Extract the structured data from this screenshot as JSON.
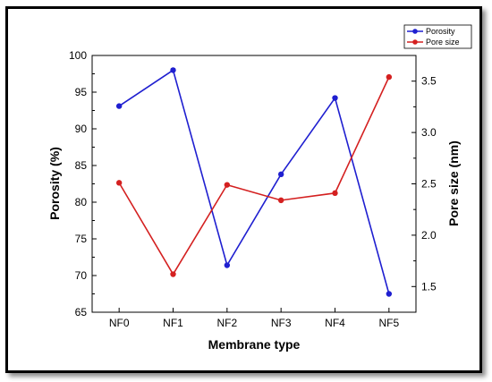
{
  "chart_data": {
    "type": "line",
    "categories": [
      "NF0",
      "NF1",
      "NF2",
      "NF3",
      "NF4",
      "NF5"
    ],
    "xlabel": "Membrane type",
    "ylabel_left": "Porosity (%)",
    "ylabel_right": "Pore size (nm)",
    "ylim_left": [
      65,
      100
    ],
    "ylim_right": [
      1.25,
      3.75
    ],
    "yticks_left": [
      65,
      70,
      75,
      80,
      85,
      90,
      95,
      100
    ],
    "yticks_right": [
      1.5,
      2.0,
      2.5,
      3.0,
      3.5
    ],
    "grid": false,
    "legend_position": "top-right",
    "series": [
      {
        "name": "Porosity",
        "axis": "left",
        "color": "#1f1fd0",
        "values": [
          93.1,
          98.0,
          71.4,
          83.8,
          94.2,
          67.5
        ]
      },
      {
        "name": "Pore size",
        "axis": "right",
        "color": "#d42020",
        "values": [
          2.51,
          1.62,
          2.49,
          2.34,
          2.41,
          3.54
        ]
      }
    ]
  }
}
